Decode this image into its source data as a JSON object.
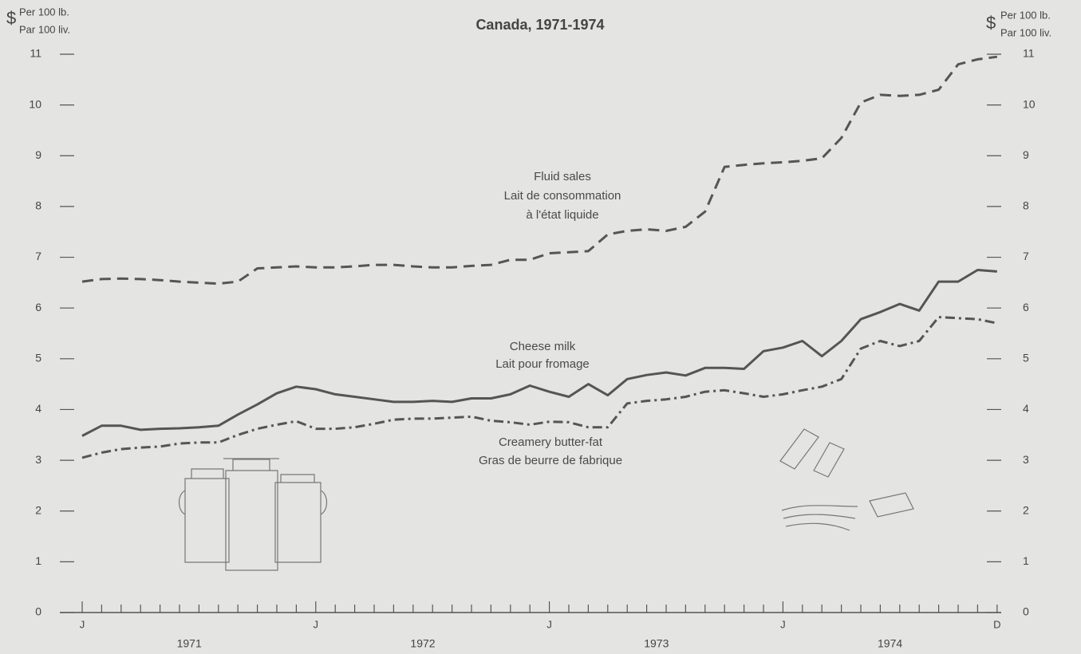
{
  "chart_data": {
    "type": "line",
    "title": "Canada, 1971-1974",
    "y_unit": {
      "symbol": "$",
      "lines": [
        "Per 100 lb.",
        "Par 100 liv."
      ]
    },
    "categories": [
      "J",
      null,
      null,
      null,
      null,
      null,
      null,
      null,
      null,
      null,
      null,
      null,
      "J",
      null,
      null,
      null,
      null,
      null,
      null,
      null,
      null,
      null,
      null,
      null,
      "J",
      null,
      null,
      null,
      null,
      null,
      null,
      null,
      null,
      null,
      null,
      null,
      "J",
      null,
      null,
      null,
      null,
      null,
      null,
      null,
      null,
      null,
      null,
      "D"
    ],
    "year_labels": [
      "1971",
      "1972",
      "1973",
      "1974"
    ],
    "ylim": [
      0,
      11
    ],
    "yticks": [
      0,
      1,
      2,
      3,
      4,
      5,
      6,
      7,
      8,
      9,
      10,
      11
    ],
    "y2lim": [
      0,
      11
    ],
    "y2ticks": [
      0,
      1,
      2,
      3,
      4,
      5,
      6,
      7,
      8,
      9,
      10,
      11
    ],
    "series": [
      {
        "label_lines": [
          "Fluid sales",
          "Lait de consommation",
          "à l'état liquide"
        ],
        "color": "#555555",
        "dash": "14 8",
        "values": [
          6.52,
          6.57,
          6.58,
          6.57,
          6.55,
          6.52,
          6.5,
          6.48,
          6.52,
          6.78,
          6.8,
          6.82,
          6.8,
          6.8,
          6.82,
          6.85,
          6.85,
          6.82,
          6.8,
          6.8,
          6.83,
          6.85,
          6.95,
          6.95,
          7.08,
          7.1,
          7.12,
          7.45,
          7.52,
          7.55,
          7.52,
          7.6,
          7.9,
          8.78,
          8.82,
          8.85,
          8.87,
          8.9,
          8.95,
          9.35,
          10.05,
          10.2,
          10.18,
          10.2,
          10.3,
          10.8,
          10.9,
          10.95
        ]
      },
      {
        "label_lines": [
          "Cheese milk",
          "Lait pour fromage"
        ],
        "color": "#555555",
        "dash": "none",
        "values": [
          3.48,
          3.68,
          3.68,
          3.6,
          3.62,
          3.63,
          3.65,
          3.68,
          3.9,
          4.1,
          4.32,
          4.45,
          4.4,
          4.3,
          4.25,
          4.2,
          4.15,
          4.15,
          4.17,
          4.15,
          4.22,
          4.22,
          4.3,
          4.47,
          4.35,
          4.25,
          4.5,
          4.28,
          4.6,
          4.68,
          4.73,
          4.67,
          4.82,
          4.82,
          4.8,
          5.15,
          5.22,
          5.35,
          5.05,
          5.35,
          5.78,
          5.92,
          6.08,
          5.95,
          6.52,
          6.52,
          6.75,
          6.72
        ]
      },
      {
        "label_lines": [
          "Creamery butter-fat",
          "Gras de beurre de fabrique"
        ],
        "color": "#555555",
        "dash": "12 5 3 5",
        "values": [
          3.05,
          3.15,
          3.22,
          3.25,
          3.27,
          3.33,
          3.35,
          3.35,
          3.5,
          3.62,
          3.7,
          3.77,
          3.62,
          3.62,
          3.65,
          3.72,
          3.8,
          3.82,
          3.82,
          3.84,
          3.86,
          3.78,
          3.75,
          3.7,
          3.76,
          3.75,
          3.65,
          3.65,
          4.12,
          4.17,
          4.2,
          4.25,
          4.35,
          4.38,
          4.32,
          4.25,
          4.3,
          4.38,
          4.45,
          4.6,
          5.2,
          5.35,
          5.25,
          5.35,
          5.82,
          5.8,
          5.78,
          5.7
        ]
      }
    ]
  }
}
